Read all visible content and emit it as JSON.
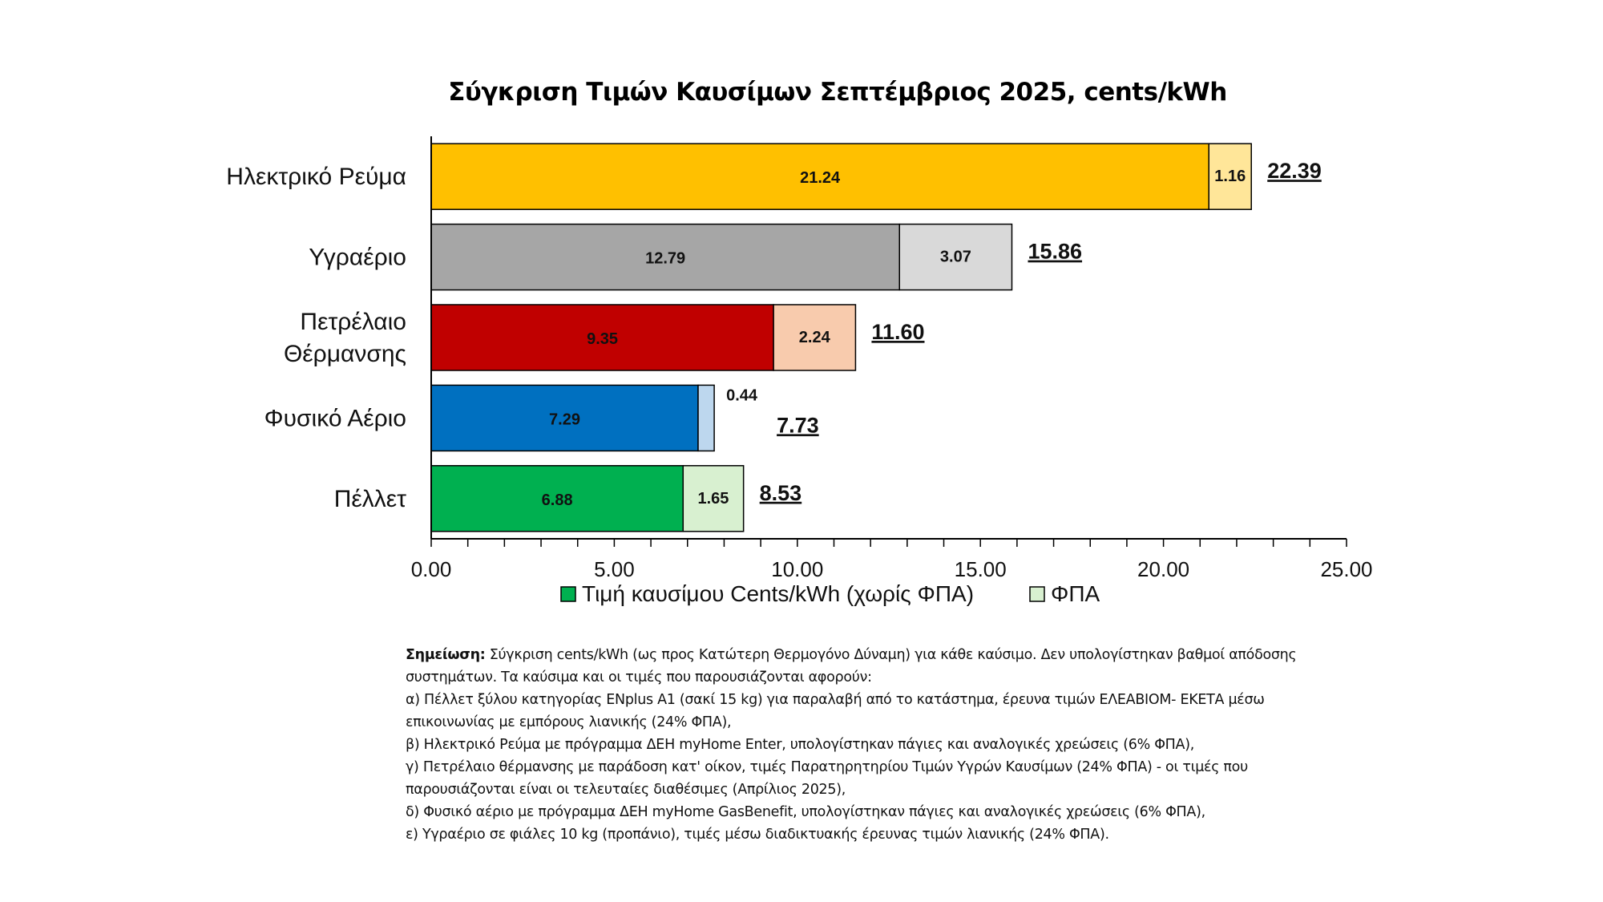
{
  "chart_data": {
    "type": "bar",
    "orientation": "horizontal",
    "stacked": true,
    "title": "Σύγκριση Τιμών Καυσίμων Σεπτέμβριος 2025, cents/kWh",
    "categories": [
      "Ηλεκτρικό Ρεύμα",
      "Υγραέριο",
      "Πετρέλαιο Θέρμανσης",
      "Φυσικό Αέριο",
      "Πέλλετ"
    ],
    "category_lines": [
      [
        "Ηλεκτρικό Ρεύμα"
      ],
      [
        "Υγραέριο"
      ],
      [
        "Πετρέλαιο",
        "Θέρμανσης"
      ],
      [
        "Φυσικό Αέριο"
      ],
      [
        "Πέλλετ"
      ]
    ],
    "series": [
      {
        "name": "Τιμή καυσίμου Cents/kWh (χωρίς ΦΠΑ)",
        "values": [
          21.24,
          12.79,
          9.35,
          7.29,
          6.88
        ]
      },
      {
        "name": "ΦΠΑ",
        "values": [
          1.16,
          3.07,
          2.24,
          0.44,
          1.65
        ]
      }
    ],
    "value_labels": [
      [
        "21.24",
        "12.79",
        "9.35",
        "7.29",
        "6.88"
      ],
      [
        "1.16",
        "3.07",
        "2.24",
        "0.44",
        "1.65"
      ]
    ],
    "totals": [
      22.39,
      15.86,
      11.6,
      7.73,
      8.53
    ],
    "total_labels": [
      "22.39",
      "15.86",
      "11.60",
      "7.73",
      "8.53"
    ],
    "xlim": [
      0,
      25
    ],
    "x_ticks": [
      "0.00",
      "5.00",
      "10.00",
      "15.00",
      "20.00",
      "25.00"
    ],
    "grid": false,
    "legend_position": "bottom",
    "colors": {
      "base": [
        "#FFC000",
        "#A6A6A6",
        "#C00000",
        "#0070C0",
        "#00B050"
      ],
      "vat": [
        "#FFE699",
        "#D9D9D9",
        "#F8CBAD",
        "#BDD7EE",
        "#D8F0D0"
      ],
      "legend_base": "#00B050",
      "legend_vat": "#D8F0D0"
    }
  },
  "note": {
    "label": "Σημείωση:",
    "intro": " Σύγκριση cents/kWh (ως προς Κατώτερη Θερμογόνο Δύναμη) για κάθε καύσιμο. Δεν υπολογίστηκαν βαθμοί απόδοσης συστημάτων. Τα καύσιμα και οι τιμές που παρουσιάζονται αφορούν:",
    "items": [
      "α) Πέλλετ ξύλου κατηγορίας ENplus A1 (σακί 15 kg) για παραλαβή από το κατάστημα, έρευνα τιμών ΕΛΕΑΒΙΟΜ- ΕΚΕΤΑ μέσω επικοινωνίας με εμπόρους λιανικής (24% ΦΠΑ),",
      "β) Ηλεκτρικό Ρεύμα με πρόγραμμα ΔΕΗ myHome Enter, υπολογίστηκαν πάγιες και αναλογικές χρεώσεις (6% ΦΠΑ),",
      "γ) Πετρέλαιο θέρμανσης με παράδοση κατ' οίκον, τιμές Παρατηρητηρίου Τιμών Υγρών Καυσίμων (24% ΦΠΑ) - οι τιμές που παρουσιάζονται είναι οι τελευταίες διαθέσιμες (Απρίλιος 2025),",
      "δ) Φυσικό αέριο με πρόγραμμα ΔΕΗ myHome GasBenefit, υπολογίστηκαν πάγιες και αναλογικές χρεώσεις (6% ΦΠΑ),",
      "ε) Υγραέριο σε φιάλες 10 kg (προπάνιο), τιμές μέσω διαδικτυακής έρευνας τιμών λιανικής (24% ΦΠΑ)."
    ]
  }
}
